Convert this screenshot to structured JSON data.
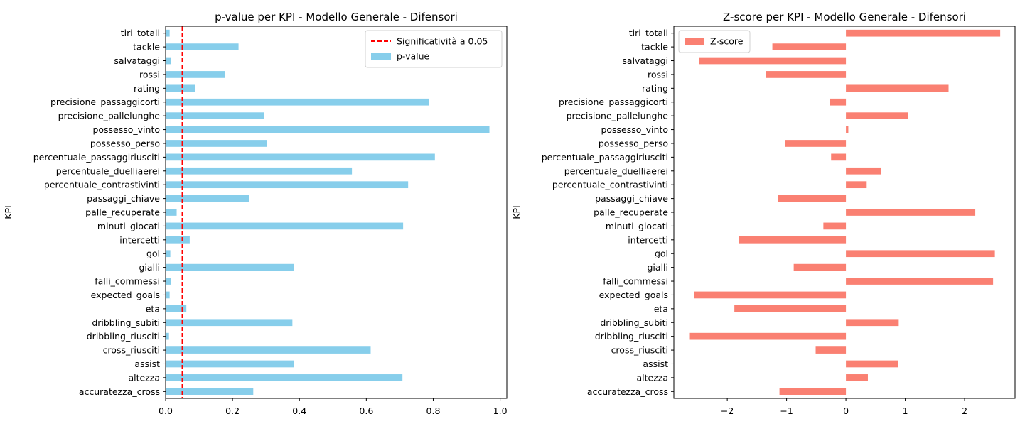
{
  "chart_data": [
    {
      "type": "bar",
      "orientation": "horizontal",
      "title": "p-value per KPI - Modello Generale - Difensori",
      "xlabel": "",
      "ylabel": "KPI",
      "xlim": [
        0,
        1.02
      ],
      "xticks": [
        0.0,
        0.2,
        0.4,
        0.6,
        0.8,
        1.0
      ],
      "xtick_labels": [
        "0.0",
        "0.2",
        "0.4",
        "0.6",
        "0.8",
        "1.0"
      ],
      "categories": [
        "tiri_totali",
        "tackle",
        "salvataggi",
        "rossi",
        "rating",
        "precisione_passaggicorti",
        "precisione_pallelunghe",
        "possesso_vinto",
        "possesso_perso",
        "percentuale_passaggiriusciti",
        "percentuale_duelliaerei",
        "percentuale_contrastivinti",
        "passaggi_chiave",
        "palle_recuperate",
        "minuti_giocati",
        "intercetti",
        "gol",
        "gialli",
        "falli_commessi",
        "expected_goals",
        "eta",
        "dribbling_subiti",
        "dribbling_riusciti",
        "cross_riusciti",
        "assist",
        "altezza",
        "accuratezza_cross"
      ],
      "series": [
        {
          "name": "p-value",
          "color": "#87ceeb",
          "values": [
            0.012,
            0.218,
            0.016,
            0.178,
            0.088,
            0.788,
            0.295,
            0.968,
            0.303,
            0.805,
            0.557,
            0.725,
            0.25,
            0.033,
            0.71,
            0.072,
            0.014,
            0.383,
            0.015,
            0.012,
            0.062,
            0.379,
            0.01,
            0.613,
            0.383,
            0.708,
            0.262
          ]
        }
      ],
      "reference_line": {
        "value": 0.05,
        "label": "Significatività a 0.05",
        "color": "#ff0000",
        "style": "dashed"
      },
      "legend": {
        "position": "top-right",
        "entries": [
          "Significatività a 0.05",
          "p-value"
        ]
      }
    },
    {
      "type": "bar",
      "orientation": "horizontal",
      "title": "Z-score per KPI - Modello Generale - Difensori",
      "xlabel": "",
      "ylabel": "KPI",
      "xlim": [
        -2.9,
        2.85
      ],
      "xticks": [
        -2,
        -1,
        0,
        1,
        2
      ],
      "xtick_labels": [
        "−2",
        "−1",
        "0",
        "1",
        "2"
      ],
      "categories": [
        "tiri_totali",
        "tackle",
        "salvataggi",
        "rossi",
        "rating",
        "precisione_passaggicorti",
        "precisione_pallelunghe",
        "possesso_vinto",
        "possesso_perso",
        "percentuale_passaggiriusciti",
        "percentuale_duelliaerei",
        "percentuale_contrastivinti",
        "passaggi_chiave",
        "palle_recuperate",
        "minuti_giocati",
        "intercetti",
        "gol",
        "gialli",
        "falli_commessi",
        "expected_goals",
        "eta",
        "dribbling_subiti",
        "dribbling_riusciti",
        "cross_riusciti",
        "assist",
        "altezza",
        "accuratezza_cross"
      ],
      "series": [
        {
          "name": "Z-score",
          "color": "#fa8072",
          "values": [
            2.6,
            -1.24,
            -2.47,
            -1.35,
            1.73,
            -0.27,
            1.05,
            0.04,
            -1.03,
            -0.25,
            0.59,
            0.35,
            -1.15,
            2.18,
            -0.38,
            -1.81,
            2.51,
            -0.88,
            2.48,
            -2.56,
            -1.88,
            0.89,
            -2.63,
            -0.51,
            0.88,
            0.37,
            -1.12
          ]
        }
      ],
      "legend": {
        "position": "top-left",
        "entries": [
          "Z-score"
        ]
      }
    }
  ]
}
